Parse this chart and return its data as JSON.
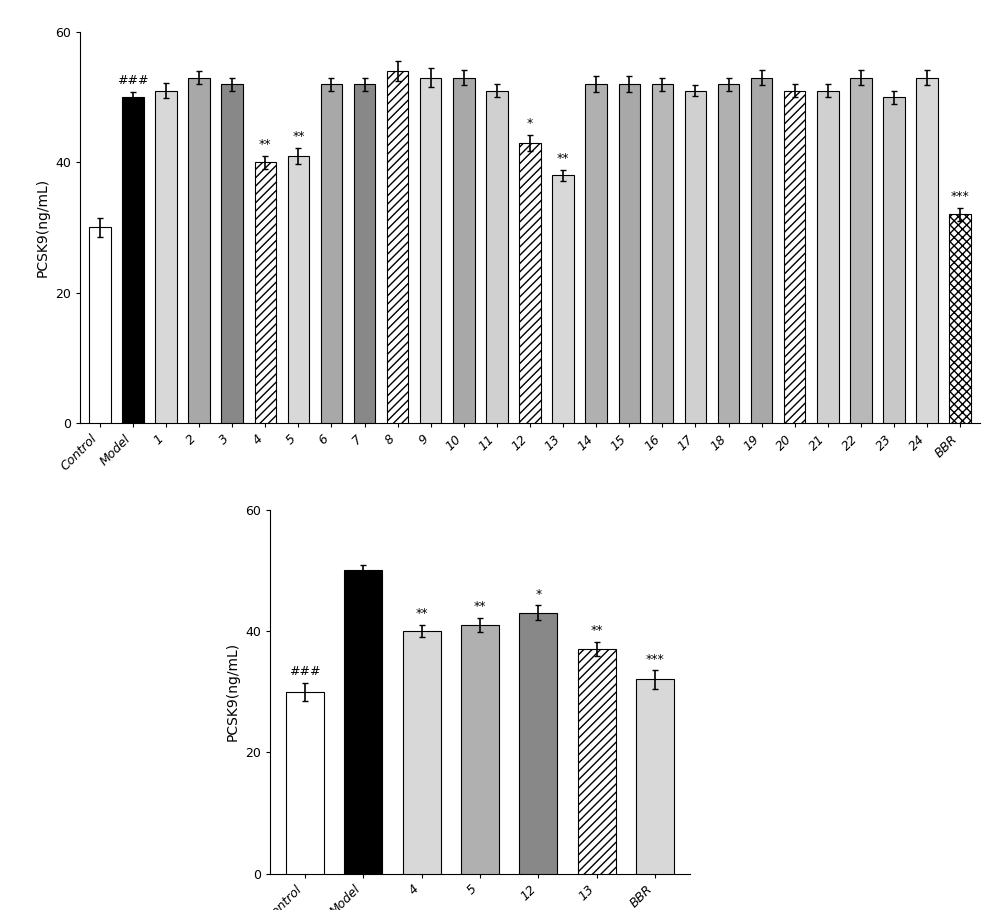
{
  "top": {
    "categories": [
      "Control",
      "Model",
      "1",
      "2",
      "3",
      "4",
      "5",
      "6",
      "7",
      "8",
      "9",
      "10",
      "11",
      "12",
      "13",
      "14",
      "15",
      "16",
      "17",
      "18",
      "19",
      "20",
      "21",
      "22",
      "23",
      "24",
      "BBR"
    ],
    "values": [
      30,
      50,
      51,
      53,
      52,
      40,
      41,
      52,
      52,
      54,
      53,
      53,
      51,
      43,
      38,
      52,
      52,
      52,
      51,
      52,
      53,
      51,
      51,
      53,
      50,
      53,
      32
    ],
    "errors": [
      1.5,
      0.8,
      1.2,
      1.0,
      1.0,
      1.0,
      1.2,
      1.0,
      1.0,
      1.5,
      1.5,
      1.2,
      1.0,
      1.2,
      0.8,
      1.2,
      1.2,
      1.0,
      0.8,
      1.0,
      1.2,
      1.0,
      1.0,
      1.2,
      1.0,
      1.2,
      1.0
    ],
    "bar_colors": [
      "white",
      "black",
      "#d8d8d8",
      "#a8a8a8",
      "#888888",
      "white",
      "#d8d8d8",
      "#a8a8a8",
      "#888888",
      "white",
      "#d8d8d8",
      "#a8a8a8",
      "#d0d0d0",
      "white",
      "#d8d8d8",
      "#b0b0b0",
      "#a8a8a8",
      "#b8b8b8",
      "#d0d0d0",
      "#b0b0b0",
      "#a8a8a8",
      "white",
      "#d0d0d0",
      "#b8b8b8",
      "#c8c8c8",
      "#d8d8d8",
      "white"
    ],
    "hatch": [
      null,
      null,
      null,
      null,
      null,
      "////",
      null,
      null,
      null,
      "////",
      null,
      null,
      null,
      "////",
      null,
      null,
      null,
      null,
      null,
      null,
      null,
      "////",
      null,
      null,
      null,
      null,
      "xxxx"
    ],
    "significance": [
      null,
      "###",
      null,
      null,
      null,
      "**",
      "**",
      null,
      null,
      null,
      null,
      null,
      null,
      "*",
      "**",
      null,
      null,
      null,
      null,
      null,
      null,
      null,
      null,
      null,
      null,
      null,
      "***"
    ],
    "ylabel": "PCSK9(ng/mL)",
    "ylim": [
      0,
      60
    ],
    "yticks": [
      0,
      20,
      40,
      60
    ]
  },
  "bottom": {
    "categories": [
      "Control",
      "Model",
      "4",
      "5",
      "12",
      "13",
      "BBR"
    ],
    "values": [
      30,
      50,
      40,
      41,
      43,
      37,
      32
    ],
    "errors": [
      1.5,
      0.8,
      1.0,
      1.2,
      1.2,
      1.2,
      1.5
    ],
    "bar_colors": [
      "white",
      "black",
      "#d8d8d8",
      "#b0b0b0",
      "#888888",
      "white",
      "#d8d8d8"
    ],
    "hatch": [
      null,
      null,
      null,
      null,
      null,
      "////",
      null
    ],
    "significance": [
      "###",
      null,
      "**",
      "**",
      "*",
      "**",
      "***"
    ],
    "ylabel": "PCSK9(ng/mL)",
    "ylim": [
      0,
      60
    ],
    "yticks": [
      0,
      20,
      40,
      60
    ]
  },
  "background_color": "white",
  "edgecolor": "black",
  "bar_width": 0.65,
  "fontsize": 10,
  "sig_fontsize": 9,
  "tick_fontsize": 9
}
